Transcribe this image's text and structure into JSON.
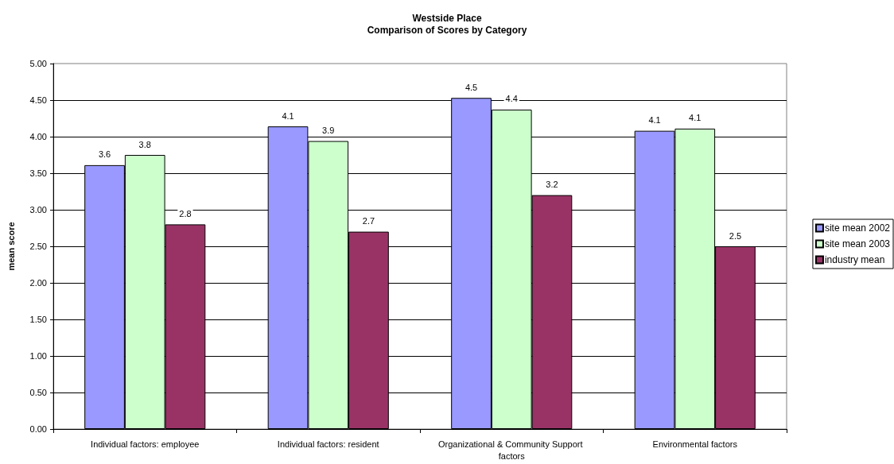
{
  "chart_data": {
    "type": "bar",
    "title": "Westside Place",
    "subtitle": "Comparison of Scores by Category",
    "ylabel": "mean score",
    "categories": [
      "Individual factors: employee",
      "Individual factors: resident",
      "Organizational & Community Support factors",
      "Environmental factors"
    ],
    "series": [
      {
        "name": "site mean 2002",
        "color": "#9999ff",
        "values": [
          3.61,
          4.14,
          4.53,
          4.08
        ],
        "value_labels": [
          "3.6",
          "4.1",
          "4.5",
          "4.1"
        ]
      },
      {
        "name": "site mean 2003",
        "color": "#ccffcc",
        "values": [
          3.75,
          3.94,
          4.37,
          4.11
        ],
        "value_labels": [
          "3.8",
          "3.9",
          "4.4",
          "4.1"
        ]
      },
      {
        "name": "industry mean",
        "color": "#993366",
        "values": [
          2.8,
          2.7,
          3.2,
          2.5
        ],
        "value_labels": [
          "2.8",
          "2.7",
          "3.2",
          "2.5"
        ]
      }
    ],
    "ylim": [
      0,
      5
    ],
    "yticks": [
      {
        "value": 0,
        "label": "0.00"
      },
      {
        "value": 0.5,
        "label": "0.50"
      },
      {
        "value": 1,
        "label": "1.00"
      },
      {
        "value": 1.5,
        "label": "1.50"
      },
      {
        "value": 2,
        "label": "2.00"
      },
      {
        "value": 2.5,
        "label": "2.50"
      },
      {
        "value": 3,
        "label": "3.00"
      },
      {
        "value": 3.5,
        "label": "3.50"
      },
      {
        "value": 4,
        "label": "4.00"
      },
      {
        "value": 4.5,
        "label": "4.50"
      },
      {
        "value": 5,
        "label": "5.00"
      }
    ],
    "grid": "y",
    "legend": "right"
  }
}
